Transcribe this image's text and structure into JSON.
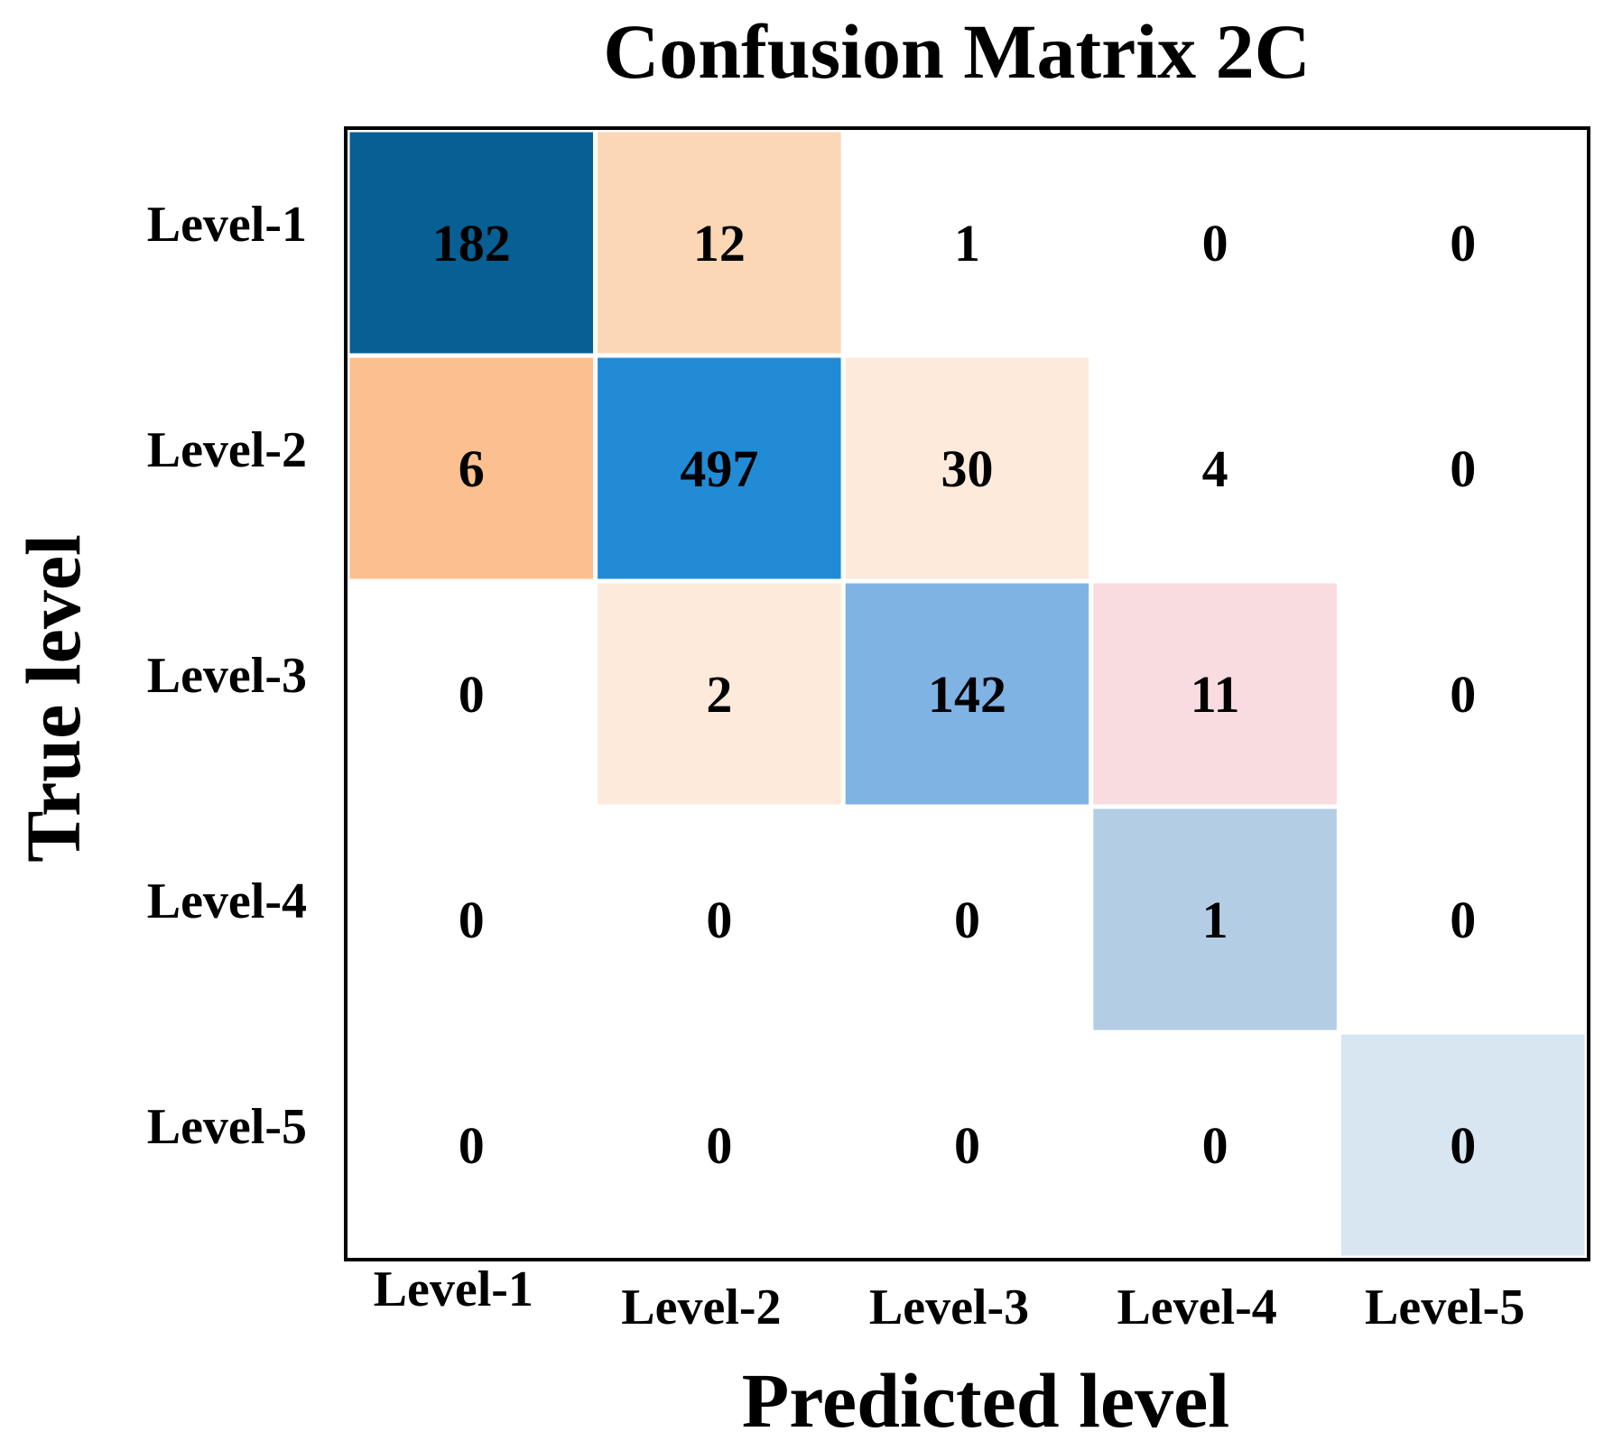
{
  "chart_data": {
    "type": "heatmap",
    "title": "Confusion Matrix 2C",
    "xlabel": "Predicted level",
    "ylabel": "True level",
    "x_categories": [
      "Level-1",
      "Level-2",
      "Level-3",
      "Level-4",
      "Level-5"
    ],
    "y_categories": [
      "Level-1",
      "Level-2",
      "Level-3",
      "Level-4",
      "Level-5"
    ],
    "values": [
      [
        182,
        12,
        1,
        0,
        0
      ],
      [
        6,
        497,
        30,
        4,
        0
      ],
      [
        0,
        2,
        142,
        11,
        0
      ],
      [
        0,
        0,
        0,
        1,
        0
      ],
      [
        0,
        0,
        0,
        0,
        0
      ]
    ],
    "cell_colors": [
      [
        "#085f93",
        "#fbd7b6",
        "#ffffff",
        "#ffffff",
        "#ffffff"
      ],
      [
        "#fcc090",
        "#218bd6",
        "#feeadb",
        "#ffffff",
        "#ffffff"
      ],
      [
        "#ffffff",
        "#feeadb",
        "#7fb3e3",
        "#f9dcdf",
        "#ffffff"
      ],
      [
        "#ffffff",
        "#ffffff",
        "#ffffff",
        "#b2cde4",
        "#ffffff"
      ],
      [
        "#ffffff",
        "#ffffff",
        "#ffffff",
        "#ffffff",
        "#d7e6f1"
      ]
    ],
    "grid": false,
    "legend": "none"
  }
}
